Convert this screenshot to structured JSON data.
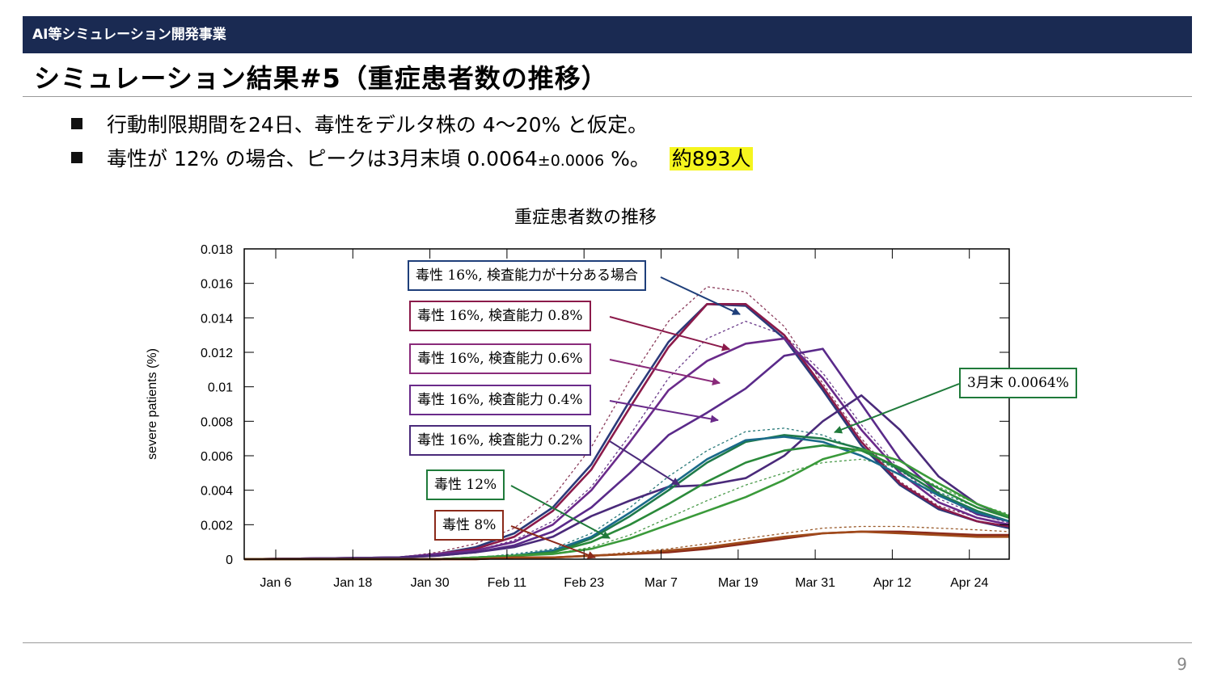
{
  "header": {
    "title": "AI等シミュレーション開発事業"
  },
  "slide": {
    "title": "シミュレーション結果#5（重症患者数の推移）",
    "bullet1": "行動制限期間を24日、毒性をデルタ株の 4～20% と仮定。",
    "bullet2_main": "毒性が 12% の場合、ピークは3月末頃 0.0064",
    "bullet2_pm": "±0.0006",
    "bullet2_tail": " %。",
    "bullet2_highlight": "約893人",
    "page_number": "9"
  },
  "chart_data": {
    "type": "line",
    "title": "重症患者数の推移",
    "xlabel": "",
    "ylabel": "severe patients (%)",
    "x_ticks": [
      "Jan 6",
      "Jan 18",
      "Jan 30",
      "Feb 11",
      "Feb 23",
      "Mar 7",
      "Mar 19",
      "Mar 31",
      "Apr 12",
      "Apr 24"
    ],
    "y_ticks": [
      "0",
      "0.002",
      "0.004",
      "0.006",
      "0.008",
      "0.01",
      "0.012",
      "0.014",
      "0.016",
      "0.018"
    ],
    "ylim": [
      0,
      0.018
    ],
    "xlim_days": [
      0,
      119
    ],
    "grid": false,
    "series": [
      {
        "color": "#2b3a7a",
        "style": "solid",
        "x": [
          0,
          24,
          30,
          36,
          42,
          48,
          54,
          60,
          66,
          72,
          78,
          84,
          90,
          96,
          102,
          108,
          114,
          119
        ],
        "y": [
          0,
          0.0001,
          0.0003,
          0.0007,
          0.0015,
          0.003,
          0.0055,
          0.0092,
          0.0126,
          0.0148,
          0.0147,
          0.0128,
          0.0098,
          0.0066,
          0.0043,
          0.0029,
          0.0022,
          0.0018
        ]
      },
      {
        "color": "#8b1a4a",
        "style": "solid",
        "x": [
          0,
          24,
          30,
          36,
          42,
          48,
          54,
          60,
          66,
          72,
          78,
          84,
          90,
          96,
          102,
          108,
          114,
          119
        ],
        "y": [
          0,
          0.0001,
          0.0003,
          0.0006,
          0.0013,
          0.0028,
          0.0052,
          0.0088,
          0.0123,
          0.0148,
          0.0148,
          0.013,
          0.01,
          0.0068,
          0.0044,
          0.003,
          0.0022,
          0.0019
        ]
      },
      {
        "color": "#6a2a8a",
        "style": "solid",
        "x": [
          0,
          24,
          30,
          36,
          42,
          48,
          54,
          60,
          66,
          72,
          78,
          84,
          90,
          96,
          102,
          108,
          114,
          119
        ],
        "y": [
          0,
          0.0001,
          0.0003,
          0.0005,
          0.001,
          0.002,
          0.004,
          0.0068,
          0.0098,
          0.0115,
          0.0125,
          0.0128,
          0.0105,
          0.0075,
          0.005,
          0.0033,
          0.0024,
          0.002
        ]
      },
      {
        "color": "#5a2a8a",
        "style": "solid",
        "x": [
          0,
          24,
          30,
          36,
          42,
          48,
          54,
          60,
          66,
          72,
          78,
          84,
          90,
          96,
          102,
          108,
          114,
          119
        ],
        "y": [
          0,
          0.0001,
          0.0002,
          0.0004,
          0.0008,
          0.0016,
          0.003,
          0.005,
          0.0072,
          0.0085,
          0.0099,
          0.0118,
          0.0122,
          0.009,
          0.0058,
          0.0038,
          0.0026,
          0.0022
        ]
      },
      {
        "color": "#4a2a7a",
        "style": "solid",
        "x": [
          0,
          24,
          30,
          36,
          42,
          48,
          54,
          60,
          66,
          72,
          78,
          84,
          90,
          96,
          102,
          108,
          114,
          119
        ],
        "y": [
          0,
          0.0001,
          0.0002,
          0.0004,
          0.0007,
          0.0013,
          0.0025,
          0.0034,
          0.0042,
          0.0043,
          0.0047,
          0.006,
          0.008,
          0.0095,
          0.0075,
          0.0048,
          0.0032,
          0.0024
        ]
      },
      {
        "color": "#1f7a4a",
        "style": "solid",
        "x": [
          0,
          24,
          30,
          36,
          42,
          48,
          54,
          60,
          66,
          72,
          78,
          84,
          90,
          96,
          102,
          108,
          114,
          119
        ],
        "y": [
          0,
          0,
          0,
          0.0001,
          0.0002,
          0.0004,
          0.0012,
          0.0025,
          0.004,
          0.0056,
          0.0068,
          0.0072,
          0.007,
          0.0064,
          0.0052,
          0.0038,
          0.0028,
          0.0022
        ]
      },
      {
        "color": "#1a6a8a",
        "style": "solid",
        "x": [
          0,
          24,
          30,
          36,
          42,
          48,
          54,
          60,
          66,
          72,
          78,
          84,
          90,
          96,
          102,
          108,
          114,
          119
        ],
        "y": [
          0,
          0,
          0,
          0.0001,
          0.0002,
          0.0005,
          0.0013,
          0.0027,
          0.0042,
          0.0058,
          0.0069,
          0.0071,
          0.0068,
          0.006,
          0.0049,
          0.0037,
          0.0027,
          0.0022
        ]
      },
      {
        "color": "#2a8a3a",
        "style": "solid",
        "x": [
          0,
          24,
          30,
          36,
          42,
          48,
          54,
          60,
          66,
          72,
          78,
          84,
          90,
          96,
          102,
          108,
          114,
          119
        ],
        "y": [
          0,
          0,
          0,
          0.0001,
          0.0002,
          0.0004,
          0.001,
          0.002,
          0.0032,
          0.0045,
          0.0056,
          0.0063,
          0.0066,
          0.0063,
          0.0053,
          0.0041,
          0.003,
          0.0024
        ]
      },
      {
        "color": "#3a9a3a",
        "style": "solid",
        "x": [
          0,
          24,
          30,
          36,
          42,
          48,
          54,
          60,
          66,
          72,
          78,
          84,
          90,
          96,
          102,
          108,
          114,
          119
        ],
        "y": [
          0,
          0,
          0,
          0.0001,
          0.0002,
          0.0003,
          0.0006,
          0.0012,
          0.002,
          0.0028,
          0.0036,
          0.0046,
          0.0058,
          0.0064,
          0.0057,
          0.0044,
          0.0032,
          0.0025
        ]
      },
      {
        "color": "#8b2a1a",
        "style": "solid",
        "x": [
          0,
          24,
          30,
          36,
          42,
          48,
          54,
          60,
          66,
          72,
          78,
          84,
          90,
          96,
          102,
          108,
          114,
          119
        ],
        "y": [
          0,
          0,
          0,
          0,
          0.0001,
          0.0001,
          0.0002,
          0.0003,
          0.0004,
          0.0006,
          0.0009,
          0.0012,
          0.0015,
          0.0016,
          0.0016,
          0.0015,
          0.0014,
          0.0014
        ]
      },
      {
        "color": "#a04a1a",
        "style": "solid",
        "x": [
          0,
          24,
          30,
          36,
          42,
          48,
          54,
          60,
          66,
          72,
          78,
          84,
          90,
          96,
          102,
          108,
          114,
          119
        ],
        "y": [
          0,
          0,
          0,
          0,
          0.0001,
          0.0001,
          0.0002,
          0.0003,
          0.0005,
          0.0007,
          0.001,
          0.0013,
          0.0015,
          0.0016,
          0.0015,
          0.0014,
          0.0013,
          0.0013
        ]
      },
      {
        "color": "#8a3a5a",
        "style": "dashed",
        "x": [
          0,
          24,
          30,
          36,
          42,
          48,
          54,
          60,
          66,
          72,
          78,
          84,
          90,
          96,
          102,
          108,
          114,
          119
        ],
        "y": [
          0,
          0.0001,
          0.0004,
          0.0009,
          0.0018,
          0.0036,
          0.0065,
          0.0104,
          0.0138,
          0.0158,
          0.0155,
          0.0135,
          0.0102,
          0.007,
          0.0045,
          0.0031,
          0.0024,
          0.002
        ]
      },
      {
        "color": "#6a3a8a",
        "style": "dashed",
        "x": [
          0,
          24,
          30,
          36,
          42,
          48,
          54,
          60,
          66,
          72,
          78,
          84,
          90,
          96,
          102,
          108,
          114,
          119
        ],
        "y": [
          0,
          0.0001,
          0.0002,
          0.0005,
          0.0011,
          0.0022,
          0.0042,
          0.0072,
          0.0105,
          0.0128,
          0.0138,
          0.013,
          0.0108,
          0.0078,
          0.0052,
          0.0035,
          0.0026,
          0.0021
        ]
      },
      {
        "color": "#2a7a7a",
        "style": "dashed",
        "x": [
          0,
          24,
          30,
          36,
          42,
          48,
          54,
          60,
          66,
          72,
          78,
          84,
          90,
          96,
          102,
          108,
          114,
          119
        ],
        "y": [
          0,
          0,
          0,
          0.0001,
          0.0003,
          0.0006,
          0.0015,
          0.003,
          0.0048,
          0.0063,
          0.0074,
          0.0076,
          0.0072,
          0.0063,
          0.0051,
          0.0039,
          0.003,
          0.0024
        ]
      },
      {
        "color": "#4a9a4a",
        "style": "dashed",
        "x": [
          0,
          24,
          30,
          36,
          42,
          48,
          54,
          60,
          66,
          72,
          78,
          84,
          90,
          96,
          102,
          108,
          114,
          119
        ],
        "y": [
          0,
          0,
          0,
          0.0001,
          0.0002,
          0.0003,
          0.0007,
          0.0014,
          0.0024,
          0.0034,
          0.0043,
          0.005,
          0.0056,
          0.0058,
          0.0053,
          0.0042,
          0.0032,
          0.0026
        ]
      },
      {
        "color": "#9a5a2a",
        "style": "dashed",
        "x": [
          0,
          24,
          30,
          36,
          42,
          48,
          54,
          60,
          66,
          72,
          78,
          84,
          90,
          96,
          102,
          108,
          114,
          119
        ],
        "y": [
          0,
          0,
          0,
          0,
          0.0001,
          0.0001,
          0.0002,
          0.0004,
          0.0006,
          0.0009,
          0.0012,
          0.0015,
          0.0018,
          0.0019,
          0.0019,
          0.0018,
          0.0017,
          0.0016
        ]
      }
    ],
    "annotations": [
      {
        "text": "毒性 16%, 検査能力が十分ある場合",
        "color": "#1f3f7a"
      },
      {
        "text": "毒性 16%, 検査能力 0.8%",
        "color": "#8b1a4a"
      },
      {
        "text": "毒性 16%, 検査能力 0.6%",
        "color": "#8a2a7a"
      },
      {
        "text": "毒性 16%, 検査能力 0.4%",
        "color": "#6a2a8a"
      },
      {
        "text": "毒性 16%, 検査能力 0.2%",
        "color": "#4a2a7a"
      },
      {
        "text": "毒性 12%",
        "color": "#1f7a3a"
      },
      {
        "text": "毒性 8%",
        "color": "#8b2a1a"
      },
      {
        "text": "3月末 0.0064%",
        "color": "#1f7a3a"
      }
    ]
  }
}
